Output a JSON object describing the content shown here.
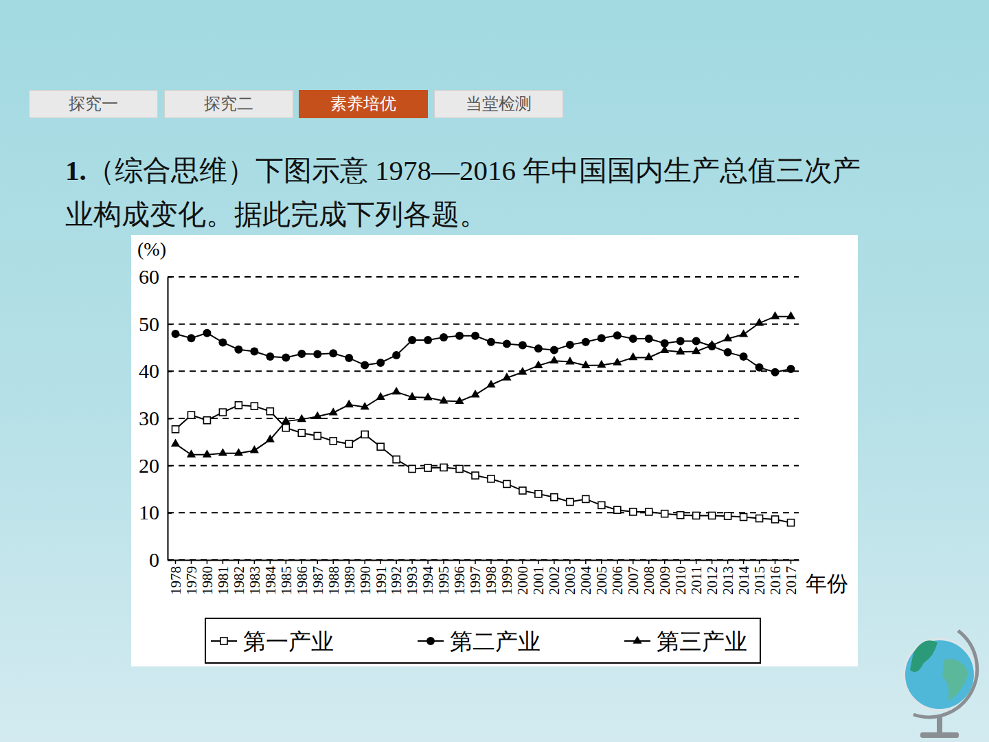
{
  "tabs": [
    {
      "label": "探究一",
      "active": false
    },
    {
      "label": "探究二",
      "active": false
    },
    {
      "label": "素养培优",
      "active": true
    },
    {
      "label": "当堂检测",
      "active": false
    }
  ],
  "question": {
    "number": "1.",
    "text": "（综合思维）下图示意 1978—2016 年中国国内生产总值三次产业构成变化。据此完成下列各题。"
  },
  "chart_data": {
    "type": "line",
    "y_label": "(%)",
    "x_label": "年份",
    "categories": [
      "1978",
      "1979",
      "1980",
      "1981",
      "1982",
      "1983",
      "1984",
      "1985",
      "1986",
      "1987",
      "1988",
      "1989",
      "1990",
      "1991",
      "1992",
      "1993",
      "1994",
      "1995",
      "1996",
      "1997",
      "1998",
      "1999",
      "2000",
      "2001",
      "2002",
      "2003",
      "2004",
      "2005",
      "2006",
      "2007",
      "2008",
      "2009",
      "2010",
      "2011",
      "2012",
      "2013",
      "2014",
      "2015",
      "2016",
      "2017"
    ],
    "ylim": [
      0,
      60
    ],
    "yticks": [
      0,
      10,
      20,
      30,
      40,
      50,
      60
    ],
    "grid": true,
    "legend": "bottom",
    "series": [
      {
        "name": "第一产业",
        "color": "#000000",
        "marker": "open-square",
        "values": [
          27.7,
          30.7,
          29.6,
          31.3,
          32.8,
          32.6,
          31.5,
          28.0,
          26.9,
          26.3,
          25.2,
          24.6,
          26.6,
          24.0,
          21.3,
          19.3,
          19.5,
          19.6,
          19.3,
          17.9,
          17.2,
          16.1,
          14.7,
          14.0,
          13.3,
          12.3,
          12.9,
          11.6,
          10.6,
          10.2,
          10.2,
          9.8,
          9.5,
          9.4,
          9.4,
          9.3,
          9.1,
          8.8,
          8.6,
          7.9
        ]
      },
      {
        "name": "第二产业",
        "color": "#000000",
        "marker": "circle",
        "values": [
          47.9,
          47.0,
          48.1,
          46.1,
          44.6,
          44.2,
          43.1,
          42.9,
          43.7,
          43.6,
          43.8,
          42.8,
          41.3,
          41.8,
          43.4,
          46.6,
          46.6,
          47.2,
          47.5,
          47.5,
          46.2,
          45.8,
          45.5,
          44.8,
          44.5,
          45.6,
          46.2,
          47.0,
          47.6,
          46.9,
          46.9,
          45.9,
          46.4,
          46.4,
          45.3,
          44.0,
          43.1,
          40.8,
          39.8,
          40.5
        ]
      },
      {
        "name": "第三产业",
        "color": "#000000",
        "marker": "triangle",
        "values": [
          24.6,
          22.3,
          22.3,
          22.6,
          22.6,
          23.2,
          25.5,
          29.4,
          29.8,
          30.4,
          31.2,
          32.9,
          32.4,
          34.5,
          35.6,
          34.5,
          34.4,
          33.7,
          33.6,
          35.0,
          37.1,
          38.6,
          39.8,
          41.2,
          42.2,
          42.0,
          41.2,
          41.3,
          41.8,
          42.9,
          42.9,
          44.4,
          44.1,
          44.2,
          45.5,
          46.9,
          47.8,
          50.2,
          51.6,
          51.6
        ]
      }
    ]
  }
}
